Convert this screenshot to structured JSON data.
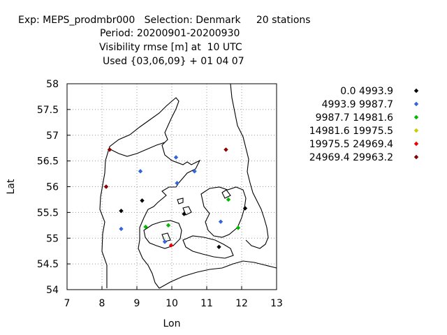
{
  "title_lines": [
    "Exp: MEPS_prodmbr000   Selection: Denmark     20 stations",
    "Period: 20200901-20200930",
    "Visibility rmse [m] at  10 UTC",
    "Used {03,06,09} + 01 04 07"
  ],
  "chart_data": {
    "type": "scatter",
    "xlabel": "Lon",
    "ylabel": "Lat",
    "xlim": [
      7,
      13
    ],
    "ylim": [
      54,
      58
    ],
    "xticks": [
      "7",
      "8",
      "9",
      "10",
      "11",
      "12",
      "13"
    ],
    "yticks": [
      "54",
      "54.5",
      "55",
      "55.5",
      "56",
      "56.5",
      "57",
      "57.5",
      "58"
    ],
    "grid": true,
    "legend_position": "right",
    "series": [
      {
        "name": "0.0 4993.9",
        "color": "#000000",
        "points": [
          [
            8.55,
            55.53
          ],
          [
            9.15,
            55.73
          ],
          [
            10.35,
            55.47
          ],
          [
            11.35,
            54.83
          ],
          [
            12.1,
            55.58
          ]
        ]
      },
      {
        "name": "4993.9 9987.7",
        "color": "#3366dd",
        "points": [
          [
            9.1,
            56.3
          ],
          [
            10.12,
            56.57
          ],
          [
            10.15,
            56.07
          ],
          [
            10.65,
            56.3
          ],
          [
            8.55,
            55.18
          ],
          [
            11.4,
            55.32
          ],
          [
            9.8,
            54.93
          ]
        ]
      },
      {
        "name": "9987.7 14981.6",
        "color": "#00bb00",
        "points": [
          [
            9.25,
            55.22
          ],
          [
            9.9,
            55.25
          ],
          [
            11.62,
            55.75
          ],
          [
            11.9,
            55.2
          ]
        ]
      },
      {
        "name": "14981.6 19975.5",
        "color": "#cccc00",
        "points": []
      },
      {
        "name": "19975.5 24969.4",
        "color": "#ee0000",
        "points": [
          [
            9.98,
            54.86
          ]
        ]
      },
      {
        "name": "24969.4 29963.2",
        "color": "#880000",
        "points": [
          [
            8.22,
            56.72
          ],
          [
            8.12,
            56.0
          ],
          [
            11.55,
            56.72
          ]
        ]
      }
    ]
  }
}
